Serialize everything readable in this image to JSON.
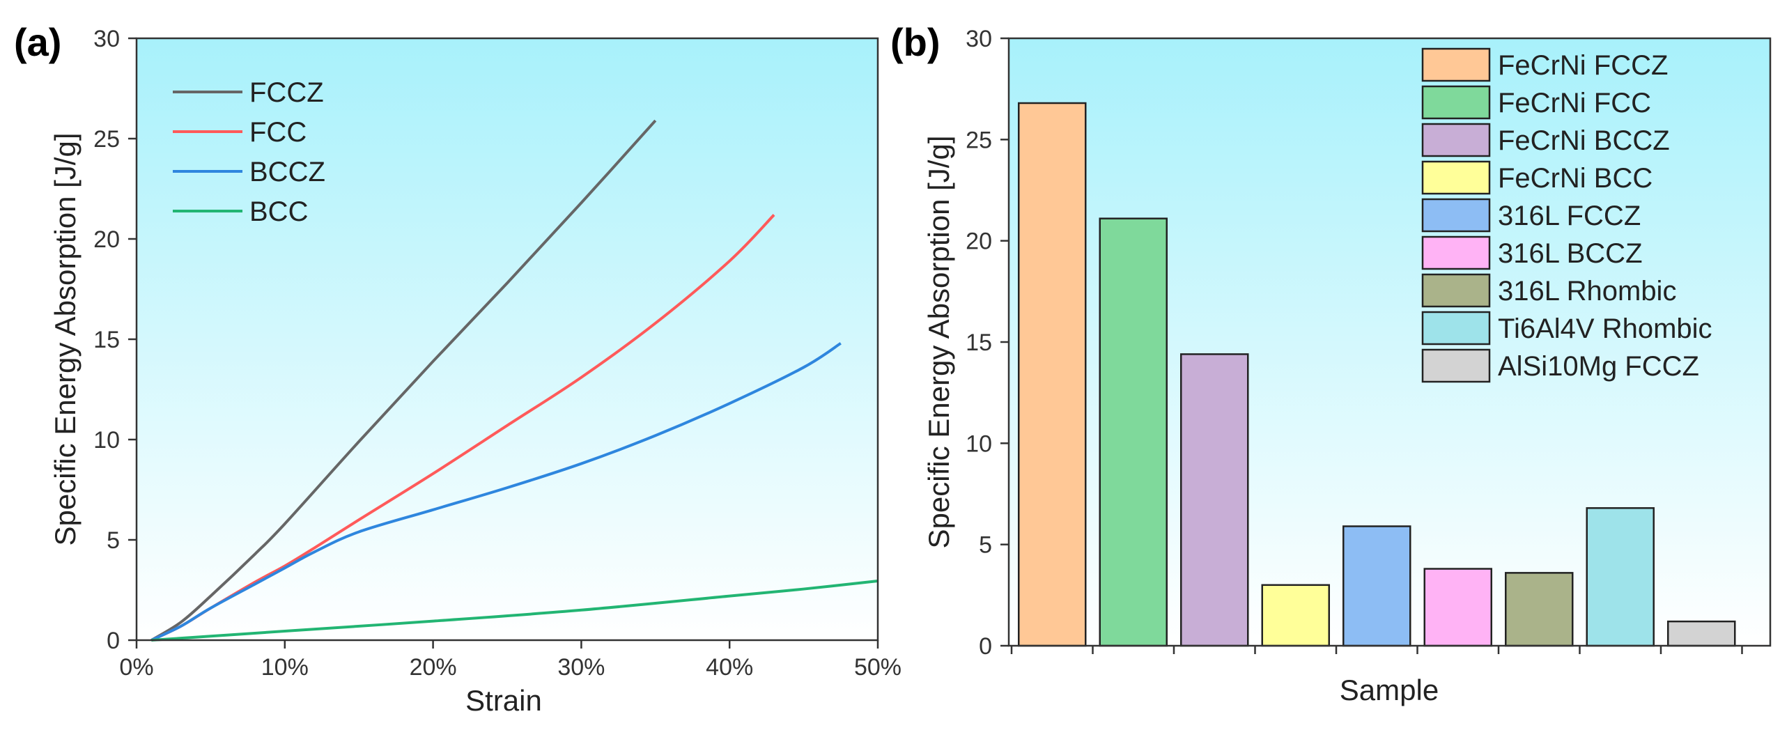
{
  "chart_data": [
    {
      "panel": "(a)",
      "type": "line",
      "xlabel": "Strain",
      "ylabel": "Specific Energy Absorption [J/g]",
      "xlim": [
        0,
        0.5
      ],
      "ylim": [
        0,
        30
      ],
      "x_ticks": [
        "0%",
        "10%",
        "20%",
        "30%",
        "40%",
        "50%"
      ],
      "y_ticks": [
        "0",
        "5",
        "10",
        "15",
        "20",
        "25",
        "30"
      ],
      "legend_position": "top-left",
      "series": [
        {
          "name": "FCCZ",
          "color": "#666666",
          "x": [
            0.01,
            0.03,
            0.05,
            0.08,
            0.1,
            0.15,
            0.2,
            0.25,
            0.3,
            0.35
          ],
          "y": [
            0,
            0.9,
            2.2,
            4.3,
            5.8,
            9.9,
            13.9,
            17.8,
            21.8,
            25.9
          ]
        },
        {
          "name": "FCC",
          "color": "#ff5a5a",
          "x": [
            0.01,
            0.03,
            0.05,
            0.08,
            0.1,
            0.12,
            0.15,
            0.2,
            0.25,
            0.3,
            0.35,
            0.4,
            0.43
          ],
          "y": [
            0,
            0.7,
            1.6,
            2.9,
            3.7,
            4.6,
            6.0,
            8.3,
            10.7,
            13.1,
            15.8,
            18.9,
            21.2
          ]
        },
        {
          "name": "BCCZ",
          "color": "#2e86de",
          "x": [
            0.01,
            0.03,
            0.05,
            0.08,
            0.1,
            0.12,
            0.15,
            0.2,
            0.25,
            0.3,
            0.35,
            0.4,
            0.45,
            0.475
          ],
          "y": [
            0,
            0.7,
            1.6,
            2.8,
            3.6,
            4.4,
            5.4,
            6.5,
            7.6,
            8.8,
            10.2,
            11.8,
            13.6,
            14.8
          ]
        },
        {
          "name": "BCC",
          "color": "#22b573",
          "x": [
            0.01,
            0.05,
            0.1,
            0.2,
            0.3,
            0.4,
            0.45,
            0.5
          ],
          "y": [
            0,
            0.2,
            0.45,
            0.95,
            1.5,
            2.2,
            2.55,
            2.95
          ]
        }
      ]
    },
    {
      "panel": "(b)",
      "type": "bar",
      "xlabel": "Sample",
      "ylabel": "Specific Energy Absorption [J/g]",
      "ylim": [
        0,
        30
      ],
      "y_ticks": [
        "0",
        "5",
        "10",
        "15",
        "20",
        "25",
        "30"
      ],
      "legend_position": "top-right",
      "categories": [
        "FeCrNi FCCZ",
        "FeCrNi FCC",
        "FeCrNi BCCZ",
        "FeCrNi BCC",
        "316L FCCZ",
        "316L BCCZ",
        "316L Rhombic",
        "Ti6Al4V Rhombic",
        "AlSi10Mg FCCZ"
      ],
      "values": [
        26.8,
        21.1,
        14.4,
        3.0,
        5.9,
        3.8,
        3.6,
        6.8,
        1.2
      ],
      "colors": [
        "#ffc896",
        "#7fd99b",
        "#c8aed6",
        "#ffff99",
        "#8dbdf4",
        "#ffb3f5",
        "#aab38a",
        "#9ee3ea",
        "#d3d3d3"
      ]
    }
  ]
}
